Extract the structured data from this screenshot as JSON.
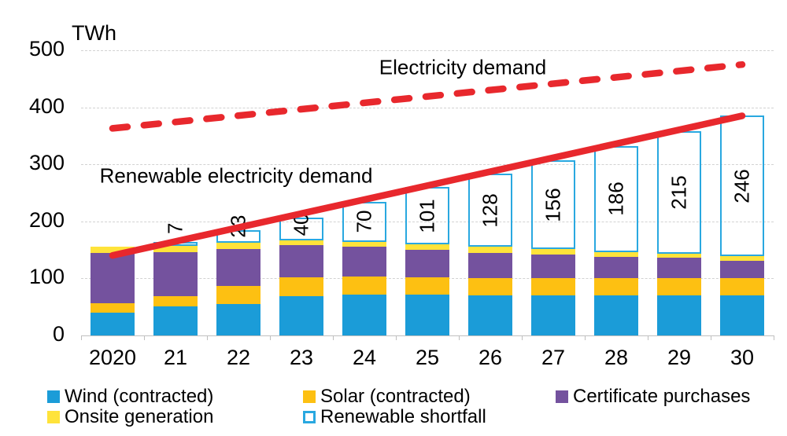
{
  "chart_data": {
    "type": "bar",
    "stacked": true,
    "title": "TWh",
    "ylim": [
      0,
      500
    ],
    "yticks": [
      0,
      100,
      200,
      300,
      400,
      500
    ],
    "grid": true,
    "legend_position": "bottom",
    "categories": [
      "2020",
      "21",
      "22",
      "23",
      "24",
      "25",
      "26",
      "27",
      "28",
      "29",
      "30"
    ],
    "series": [
      {
        "name": "Wind (contracted)",
        "color": "#1B9CD8",
        "values": [
          40,
          50,
          55,
          68,
          71,
          71,
          70,
          70,
          70,
          70,
          70
        ]
      },
      {
        "name": "Solar (contracted)",
        "color": "#FDC012",
        "values": [
          16,
          19,
          32,
          33,
          32,
          30,
          30,
          30,
          30,
          30,
          30
        ]
      },
      {
        "name": "Certificate purchases",
        "color": "#74529E",
        "values": [
          89,
          77,
          64,
          57,
          52,
          49,
          45,
          41,
          38,
          36,
          31
        ]
      },
      {
        "name": "Onsite generation",
        "color": "#FFE33A",
        "values": [
          11,
          11,
          11,
          8,
          9,
          9,
          10,
          10,
          8,
          7,
          8
        ]
      },
      {
        "name": "Renewable shortfall",
        "color": "#FFFFFF",
        "border_color": "#29A8E0",
        "show_value_labels": true,
        "values": [
          0,
          7,
          23,
          40,
          70,
          101,
          128,
          156,
          186,
          215,
          246
        ]
      }
    ],
    "shortfall_value_labels": [
      "",
      "7",
      "23",
      "40",
      "70",
      "101",
      "128",
      "156",
      "186",
      "215",
      "246"
    ],
    "lines": [
      {
        "name": "Electricity demand",
        "style": "dashed",
        "color": "#E8282D",
        "x": [
          "2020",
          "30"
        ],
        "values": [
          363,
          475
        ]
      },
      {
        "name": "Renewable electricity demand",
        "style": "solid",
        "color": "#E8282D",
        "x": [
          "2020",
          "30"
        ],
        "values": [
          140,
          385
        ]
      }
    ]
  }
}
